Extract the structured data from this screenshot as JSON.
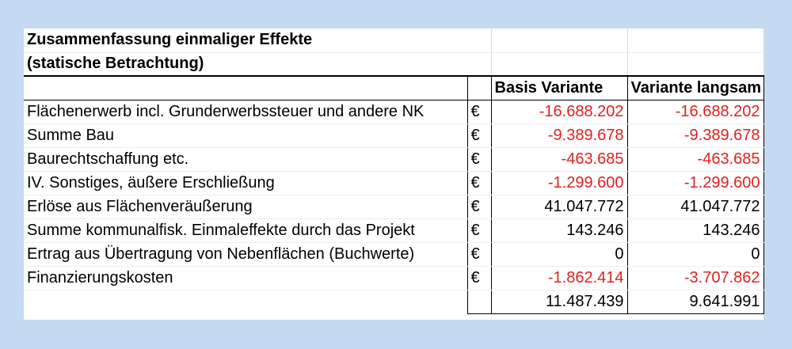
{
  "title_line1": "Zusammenfassung einmaliger Effekte",
  "title_line2": "(statische Betrachtung)",
  "columns": {
    "basis": "Basis Variante",
    "langsam": "Variante langsam"
  },
  "currency": "€",
  "rows": [
    {
      "label": "Flächenerwerb incl. Grunderwerbssteuer und andere NK",
      "basis": "-16.688.202",
      "langsam": "-16.688.202",
      "negative": true
    },
    {
      "label": "Summe Bau",
      "basis": "-9.389.678",
      "langsam": "-9.389.678",
      "negative": true
    },
    {
      "label": "Baurechtschaffung etc.",
      "basis": "-463.685",
      "langsam": "-463.685",
      "negative": true
    },
    {
      "label": "IV. Sonstiges, äußere Erschließung",
      "basis": "-1.299.600",
      "langsam": "-1.299.600",
      "negative": true
    },
    {
      "label": "Erlöse aus Flächenveräußerung",
      "basis": "41.047.772",
      "langsam": "41.047.772",
      "negative": false
    },
    {
      "label": "Summe kommunalfisk. Einmaleffekte durch das Projekt",
      "basis": "143.246",
      "langsam": "143.246",
      "negative": false
    },
    {
      "label": "Ertrag aus Übertragung von Nebenflächen (Buchwerte)",
      "basis": "0",
      "langsam": "0",
      "negative": false
    },
    {
      "label": "Finanzierungskosten",
      "basis": "-1.862.414",
      "langsam": "-3.707.862",
      "negative": true
    }
  ],
  "totals": {
    "basis": "11.487.439",
    "langsam": "9.641.991"
  },
  "colors": {
    "background": "#c5d9f1",
    "negative": "#e02020"
  }
}
